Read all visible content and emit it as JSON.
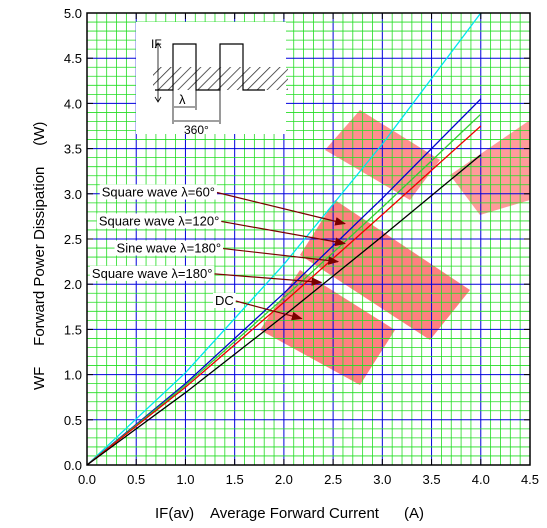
{
  "chart_data": {
    "type": "line",
    "xlabel": "IF(av)    Average Forward Current      (A)",
    "ylabel": "WF     Forward Power Dissipation     (W)",
    "xlim": [
      0,
      4.5
    ],
    "ylim": [
      0,
      5.0
    ],
    "x_ticks": [
      "0.0",
      "0.5",
      "1.0",
      "1.5",
      "2.0",
      "2.5",
      "3.0",
      "3.5",
      "4.0",
      "4.5"
    ],
    "y_ticks": [
      "0.0",
      "0.5",
      "1.0",
      "1.5",
      "2.0",
      "2.5",
      "3.0",
      "3.5",
      "4.0",
      "4.5",
      "5.0"
    ],
    "grid": true,
    "series": [
      {
        "name": "Square wave λ=60°",
        "color": "#00e5ee",
        "x": [
          0,
          1,
          2,
          3,
          4
        ],
        "y": [
          0,
          1.02,
          2.22,
          3.55,
          5.0
        ]
      },
      {
        "name": "Square wave λ=120°",
        "color": "#0000cc",
        "x": [
          0,
          1,
          2,
          3,
          4
        ],
        "y": [
          0,
          0.9,
          1.9,
          2.95,
          4.05
        ]
      },
      {
        "name": "Sine wave λ=180°",
        "color": "#33cc33",
        "x": [
          0,
          1,
          2,
          3,
          4
        ],
        "y": [
          0,
          0.88,
          1.85,
          2.85,
          3.88
        ]
      },
      {
        "name": "Square wave λ=180°",
        "color": "#ee0000",
        "x": [
          0,
          1,
          2,
          3,
          4
        ],
        "y": [
          0,
          0.86,
          1.8,
          2.77,
          3.75
        ]
      },
      {
        "name": "DC",
        "color": "#000000",
        "x": [
          0,
          1,
          2,
          3,
          4
        ],
        "y": [
          0,
          0.8,
          1.65,
          2.53,
          3.43
        ]
      }
    ],
    "annotations": [
      {
        "text": "Square wave λ=60°",
        "text_x": 0.15,
        "text_y": 2.97,
        "target_x": 2.62,
        "target_y": 2.67
      },
      {
        "text": "Square wave λ=120°",
        "text_x": 0.12,
        "text_y": 2.65,
        "target_x": 2.62,
        "target_y": 2.45
      },
      {
        "text": "Sine wave λ=180°",
        "text_x": 0.3,
        "text_y": 2.35,
        "target_x": 2.55,
        "target_y": 2.25
      },
      {
        "text": "Square wave λ=180°",
        "text_x": 0.05,
        "text_y": 2.07,
        "target_x": 2.38,
        "target_y": 2.02
      },
      {
        "text": "DC",
        "text_x": 1.3,
        "text_y": 1.77,
        "target_x": 2.18,
        "target_y": 1.62
      }
    ],
    "inset": {
      "current_label": "IF",
      "lambda_label": "λ",
      "period_label": "360°"
    }
  }
}
